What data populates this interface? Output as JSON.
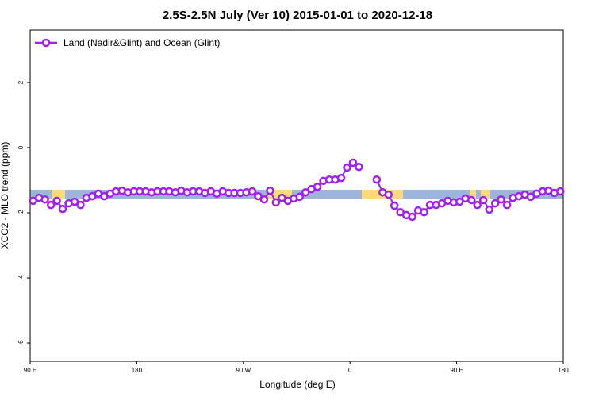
{
  "chart_data": {
    "type": "line",
    "title": "2.5S-2.5N July (Ver 10)   2015-01-01 to 2020-12-18",
    "x_label": "Longitude (deg E)",
    "y_label": "XCO2 - MLO trend (ppm)",
    "xlim": [
      90,
      540
    ],
    "xticks": [
      {
        "value": 90,
        "label": "90 E"
      },
      180,
      {
        "value": 270,
        "label": "90 W"
      },
      {
        "value": 360,
        "label": "0"
      },
      {
        "value": 450,
        "label": "90 E"
      },
      {
        "value": 540,
        "label": "180"
      }
    ],
    "ylim": [
      -6.56,
      3.61
    ],
    "yticks": [
      2,
      0,
      -2,
      -4,
      -6
    ],
    "legend": "top-left",
    "x": [
      92.5,
      97.5,
      102.5,
      107.5,
      112.5,
      117.5,
      122.5,
      127.5,
      132.5,
      137.5,
      142.5,
      147.5,
      152.5,
      157.5,
      162.5,
      167.5,
      172.5,
      177.5,
      182.5,
      187.5,
      192.5,
      197.5,
      202.5,
      207.5,
      212.5,
      217.5,
      222.5,
      227.5,
      232.5,
      237.5,
      242.5,
      247.5,
      252.5,
      257.5,
      262.5,
      267.5,
      272.5,
      277.5,
      282.5,
      287.5,
      292.5,
      297.5,
      302.5,
      307.5,
      312.5,
      317.5,
      322.5,
      327.5,
      332.5,
      337.5,
      342.5,
      347.5,
      352.5,
      357.5,
      362.5,
      367.5,
      372.5,
      377.5,
      382.5,
      387.5,
      392.5,
      397.5,
      402.5,
      407.5,
      412.5,
      417.5,
      422.5,
      427.5,
      432.5,
      437.5,
      442.5,
      447.5,
      452.5,
      457.5,
      462.5,
      467.5,
      472.5,
      477.5,
      482.5,
      487.5,
      492.5,
      497.5,
      502.5,
      507.5,
      512.5,
      517.5,
      522.5,
      527.5,
      532.5,
      537.5
    ],
    "series": [
      {
        "name": "Land (Nadir&Glint) and Ocean (Glint)",
        "color": "#a020f0",
        "values": [
          -1.63,
          -1.54,
          -1.59,
          -1.76,
          -1.63,
          -1.88,
          -1.71,
          -1.66,
          -1.76,
          -1.54,
          -1.49,
          -1.41,
          -1.49,
          -1.41,
          -1.34,
          -1.32,
          -1.37,
          -1.34,
          -1.34,
          -1.34,
          -1.37,
          -1.34,
          -1.34,
          -1.34,
          -1.37,
          -1.32,
          -1.37,
          -1.34,
          -1.34,
          -1.39,
          -1.34,
          -1.41,
          -1.34,
          -1.39,
          -1.39,
          -1.39,
          -1.37,
          -1.34,
          -1.49,
          -1.59,
          -1.32,
          -1.68,
          -1.54,
          -1.63,
          -1.56,
          -1.51,
          -1.37,
          -1.27,
          -1.2,
          -1.02,
          -0.98,
          -0.98,
          -0.93,
          -0.61,
          -0.46,
          -0.59,
          null,
          null,
          -0.98,
          -1.37,
          -1.44,
          -1.78,
          -1.98,
          -2.07,
          -2.12,
          -1.93,
          -1.98,
          -1.76,
          -1.76,
          -1.71,
          -1.63,
          -1.68,
          -1.66,
          -1.56,
          -1.61,
          -1.76,
          -1.61,
          -1.9,
          -1.71,
          -1.59,
          -1.76,
          -1.54,
          -1.49,
          -1.44,
          -1.51,
          -1.41,
          -1.34,
          -1.32,
          -1.39,
          -1.34
        ]
      }
    ]
  }
}
